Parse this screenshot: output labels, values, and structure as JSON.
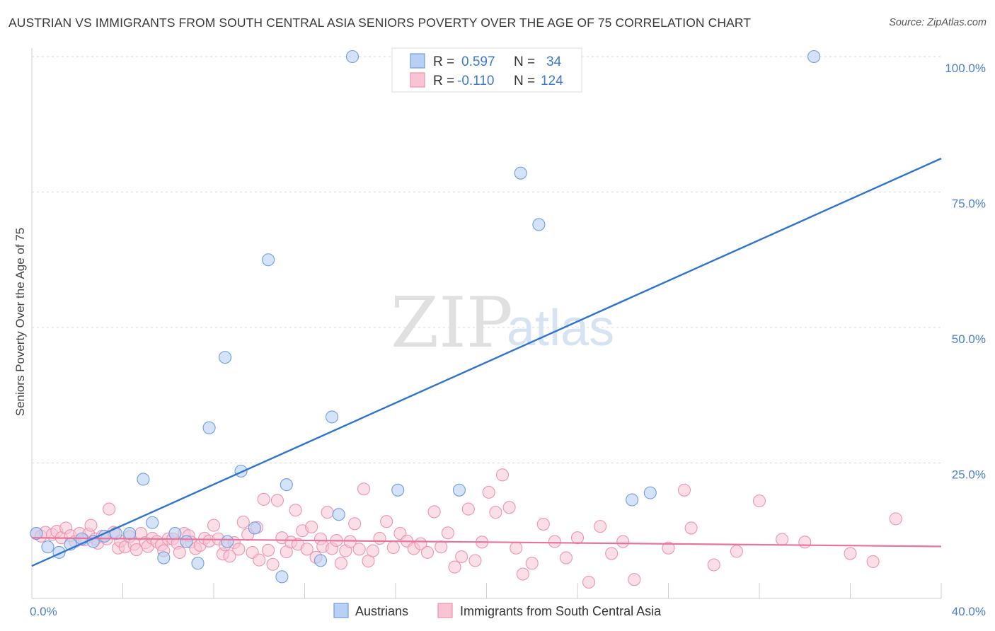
{
  "header": {
    "title": "AUSTRIAN VS IMMIGRANTS FROM SOUTH CENTRAL ASIA SENIORS POVERTY OVER THE AGE OF 75 CORRELATION CHART",
    "source": "Source: ZipAtlas.com"
  },
  "watermark": {
    "zip": "ZIP",
    "atlas": "atlas"
  },
  "colors": {
    "blue_fill": "#b8d0f3",
    "blue_stroke": "#6f9de0",
    "blue_line": "#2f74d0",
    "pink_fill": "#f8c4d4",
    "pink_stroke": "#ee93b0",
    "pink_line": "#e8739c",
    "grid": "#d8d8d8",
    "tick_text": "#4a7fd0"
  },
  "legend": {
    "rows": [
      {
        "r_label": "R =",
        "r_value": "0.597",
        "n_label": "N =",
        "n_value": "34"
      },
      {
        "r_label": "R =",
        "r_value": "-0.110",
        "n_label": "N =",
        "n_value": "124"
      }
    ]
  },
  "bottom_legend": {
    "series1": "Austrians",
    "series2": "Immigrants from South Central Asia"
  },
  "chart_data": {
    "type": "scatter",
    "title": "AUSTRIAN VS IMMIGRANTS FROM SOUTH CENTRAL ASIA SENIORS POVERTY OVER THE AGE OF 75 CORRELATION CHART",
    "xlabel": "",
    "ylabel": "Seniors Poverty Over the Age of 75",
    "xlim": [
      0,
      40
    ],
    "ylim": [
      0,
      100
    ],
    "x_tick_labels": [
      "0.0%",
      "40.0%"
    ],
    "y_tick_labels": [
      "25.0%",
      "50.0%",
      "75.0%",
      "100.0%"
    ],
    "y_ticks": [
      25,
      50,
      75,
      100
    ],
    "x_minor_ticks": [
      0,
      4,
      8,
      12,
      16,
      20,
      24,
      28,
      32,
      36,
      40
    ],
    "grid": true,
    "series": [
      {
        "name": "Austrians",
        "color": "#6f9de0",
        "r": 0.597,
        "n": 34,
        "trend": {
          "x": [
            0,
            40
          ],
          "y": [
            6.0,
            81.2
          ]
        },
        "points": [
          [
            0.2,
            12.0
          ],
          [
            0.7,
            9.5
          ],
          [
            1.2,
            8.5
          ],
          [
            1.7,
            10.0
          ],
          [
            2.2,
            11.0
          ],
          [
            2.7,
            10.5
          ],
          [
            3.2,
            11.5
          ],
          [
            3.7,
            12.0
          ],
          [
            4.3,
            12.0
          ],
          [
            4.9,
            22.0
          ],
          [
            5.3,
            14.0
          ],
          [
            5.8,
            7.5
          ],
          [
            6.3,
            12.0
          ],
          [
            6.8,
            10.5
          ],
          [
            7.3,
            6.5
          ],
          [
            7.8,
            31.5
          ],
          [
            8.5,
            44.5
          ],
          [
            8.6,
            10.5
          ],
          [
            9.2,
            23.5
          ],
          [
            9.8,
            13.0
          ],
          [
            10.4,
            62.5
          ],
          [
            11.0,
            4.0
          ],
          [
            11.2,
            21.0
          ],
          [
            12.7,
            7.0
          ],
          [
            13.2,
            33.5
          ],
          [
            13.5,
            15.5
          ],
          [
            14.1,
            100.0
          ],
          [
            16.1,
            20.0
          ],
          [
            18.8,
            20.0
          ],
          [
            21.5,
            78.5
          ],
          [
            22.3,
            69.0
          ],
          [
            26.4,
            18.2
          ],
          [
            27.2,
            19.5
          ],
          [
            34.4,
            100.0
          ]
        ]
      },
      {
        "name": "Immigrants from South Central Asia",
        "color": "#ee93b0",
        "r": -0.11,
        "n": 124,
        "trend": {
          "x": [
            0,
            40
          ],
          "y": [
            11.2,
            9.6
          ]
        },
        "points": [
          [
            0.2,
            12.0
          ],
          [
            0.4,
            11.5
          ],
          [
            0.6,
            12.2
          ],
          [
            0.9,
            11.8
          ],
          [
            1.1,
            12.4
          ],
          [
            1.3,
            11.2
          ],
          [
            1.5,
            13.0
          ],
          [
            1.7,
            11.6
          ],
          [
            1.9,
            10.5
          ],
          [
            2.1,
            12.0
          ],
          [
            2.3,
            10.8
          ],
          [
            2.5,
            11.9
          ],
          [
            2.6,
            13.5
          ],
          [
            2.8,
            11.0
          ],
          [
            2.9,
            10.2
          ],
          [
            3.1,
            11.5
          ],
          [
            3.3,
            11.0
          ],
          [
            3.4,
            16.5
          ],
          [
            3.6,
            12.2
          ],
          [
            3.8,
            9.3
          ],
          [
            3.9,
            10.6
          ],
          [
            4.1,
            9.5
          ],
          [
            4.3,
            11.4
          ],
          [
            4.5,
            10.0
          ],
          [
            4.6,
            9.0
          ],
          [
            4.8,
            12.0
          ],
          [
            5.0,
            10.3
          ],
          [
            5.1,
            9.6
          ],
          [
            5.3,
            11.1
          ],
          [
            5.5,
            10.5
          ],
          [
            5.7,
            9.9
          ],
          [
            5.8,
            8.8
          ],
          [
            6.0,
            11.0
          ],
          [
            6.2,
            11.0
          ],
          [
            6.4,
            10.2
          ],
          [
            6.5,
            8.5
          ],
          [
            6.7,
            12.0
          ],
          [
            6.9,
            11.6
          ],
          [
            7.0,
            10.4
          ],
          [
            7.2,
            9.2
          ],
          [
            7.4,
            9.8
          ],
          [
            7.6,
            11.1
          ],
          [
            7.8,
            10.6
          ],
          [
            8.0,
            13.5
          ],
          [
            8.2,
            11.0
          ],
          [
            8.4,
            8.2
          ],
          [
            8.5,
            9.9
          ],
          [
            8.7,
            7.8
          ],
          [
            8.9,
            10.3
          ],
          [
            9.1,
            9.1
          ],
          [
            9.3,
            14.1
          ],
          [
            9.5,
            11.8
          ],
          [
            9.7,
            8.5
          ],
          [
            9.9,
            13.1
          ],
          [
            10.0,
            7.1
          ],
          [
            10.2,
            18.3
          ],
          [
            10.4,
            8.9
          ],
          [
            10.6,
            6.3
          ],
          [
            10.8,
            18.1
          ],
          [
            11.0,
            11.2
          ],
          [
            11.2,
            8.6
          ],
          [
            11.4,
            10.4
          ],
          [
            11.6,
            16.3
          ],
          [
            11.7,
            10.0
          ],
          [
            11.9,
            12.5
          ],
          [
            12.1,
            9.1
          ],
          [
            12.3,
            13.2
          ],
          [
            12.5,
            7.6
          ],
          [
            12.7,
            11.0
          ],
          [
            12.8,
            9.6
          ],
          [
            13.0,
            15.9
          ],
          [
            13.2,
            9.2
          ],
          [
            13.4,
            10.7
          ],
          [
            13.6,
            6.5
          ],
          [
            13.8,
            8.8
          ],
          [
            14.0,
            10.5
          ],
          [
            14.2,
            13.8
          ],
          [
            14.4,
            9.1
          ],
          [
            14.6,
            20.2
          ],
          [
            14.8,
            6.9
          ],
          [
            15.0,
            8.8
          ],
          [
            15.3,
            11.1
          ],
          [
            15.6,
            14.2
          ],
          [
            15.9,
            9.4
          ],
          [
            16.2,
            12.0
          ],
          [
            16.5,
            10.6
          ],
          [
            16.8,
            9.2
          ],
          [
            17.1,
            10.1
          ],
          [
            17.4,
            8.5
          ],
          [
            17.7,
            16.0
          ],
          [
            18.0,
            9.5
          ],
          [
            18.3,
            12.1
          ],
          [
            18.6,
            5.8
          ],
          [
            18.9,
            7.7
          ],
          [
            19.2,
            16.5
          ],
          [
            19.5,
            7.0
          ],
          [
            19.8,
            10.4
          ],
          [
            20.1,
            19.6
          ],
          [
            20.4,
            15.9
          ],
          [
            20.7,
            22.8
          ],
          [
            21.0,
            16.8
          ],
          [
            21.3,
            9.3
          ],
          [
            21.6,
            4.5
          ],
          [
            22.0,
            6.5
          ],
          [
            22.5,
            13.7
          ],
          [
            23.0,
            10.5
          ],
          [
            23.5,
            7.5
          ],
          [
            24.0,
            11.2
          ],
          [
            24.5,
            3.0
          ],
          [
            25.0,
            13.3
          ],
          [
            25.5,
            8.3
          ],
          [
            26.0,
            10.5
          ],
          [
            26.5,
            3.5
          ],
          [
            28.0,
            9.3
          ],
          [
            28.7,
            20.0
          ],
          [
            29.0,
            13.0
          ],
          [
            30.0,
            6.2
          ],
          [
            31.0,
            8.7
          ],
          [
            32.0,
            18.0
          ],
          [
            33.0,
            10.9
          ],
          [
            34.0,
            10.4
          ],
          [
            36.0,
            8.3
          ],
          [
            37.0,
            6.8
          ],
          [
            38.0,
            14.7
          ]
        ]
      }
    ]
  }
}
